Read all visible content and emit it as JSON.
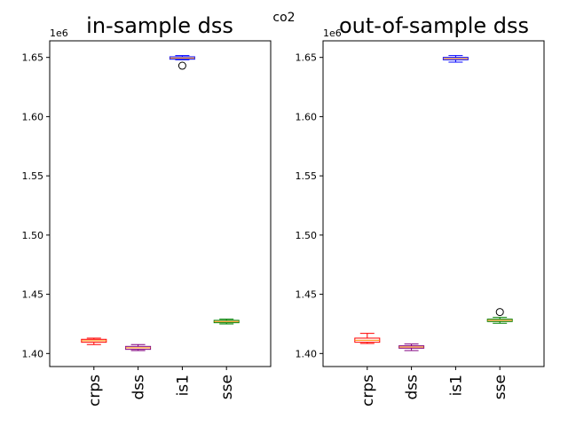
{
  "suptitle": "co2",
  "chart_data": [
    {
      "type": "box",
      "title": "in-sample dss",
      "offset_label": "1e6",
      "ylim": [
        1.389,
        1.664
      ],
      "yticks": [
        1.4,
        1.45,
        1.5,
        1.55,
        1.6,
        1.65
      ],
      "ytick_labels": [
        "1.40",
        "1.45",
        "1.50",
        "1.55",
        "1.60",
        "1.65"
      ],
      "categories": [
        "crps",
        "dss",
        "is1",
        "sse"
      ],
      "boxes": [
        {
          "label": "crps",
          "color": "#ff0000",
          "whisker_low": 1.4075,
          "q1": 1.4095,
          "median": 1.4108,
          "q3": 1.412,
          "whisker_high": 1.413,
          "outliers": []
        },
        {
          "label": "dss",
          "color": "#800080",
          "whisker_low": 1.4025,
          "q1": 1.4035,
          "median": 1.4048,
          "q3": 1.406,
          "whisker_high": 1.4075,
          "outliers": []
        },
        {
          "label": "is1",
          "color": "#0000ff",
          "whisker_low": 1.648,
          "q1": 1.6485,
          "median": 1.6495,
          "q3": 1.6505,
          "whisker_high": 1.6515,
          "outliers": [
            1.643
          ]
        },
        {
          "label": "sse",
          "color": "#008000",
          "whisker_low": 1.425,
          "q1": 1.426,
          "median": 1.427,
          "q3": 1.428,
          "whisker_high": 1.429,
          "outliers": []
        }
      ]
    },
    {
      "type": "box",
      "title": "out-of-sample dss",
      "offset_label": "1e6",
      "ylim": [
        1.389,
        1.664
      ],
      "yticks": [
        1.4,
        1.45,
        1.5,
        1.55,
        1.6,
        1.65
      ],
      "ytick_labels": [
        "1.40",
        "1.45",
        "1.50",
        "1.55",
        "1.60",
        "1.65"
      ],
      "categories": [
        "crps",
        "dss",
        "is1",
        "sse"
      ],
      "boxes": [
        {
          "label": "crps",
          "color": "#ff0000",
          "whisker_low": 1.4085,
          "q1": 1.4095,
          "median": 1.4112,
          "q3": 1.413,
          "whisker_high": 1.417,
          "outliers": []
        },
        {
          "label": "dss",
          "color": "#800080",
          "whisker_low": 1.4025,
          "q1": 1.4045,
          "median": 1.4055,
          "q3": 1.4065,
          "whisker_high": 1.408,
          "outliers": []
        },
        {
          "label": "is1",
          "color": "#0000ff",
          "whisker_low": 1.646,
          "q1": 1.648,
          "median": 1.649,
          "q3": 1.65,
          "whisker_high": 1.6515,
          "outliers": []
        },
        {
          "label": "sse",
          "color": "#008000",
          "whisker_low": 1.4255,
          "q1": 1.427,
          "median": 1.428,
          "q3": 1.429,
          "whisker_high": 1.4305,
          "outliers": [
            1.435
          ]
        }
      ]
    }
  ]
}
